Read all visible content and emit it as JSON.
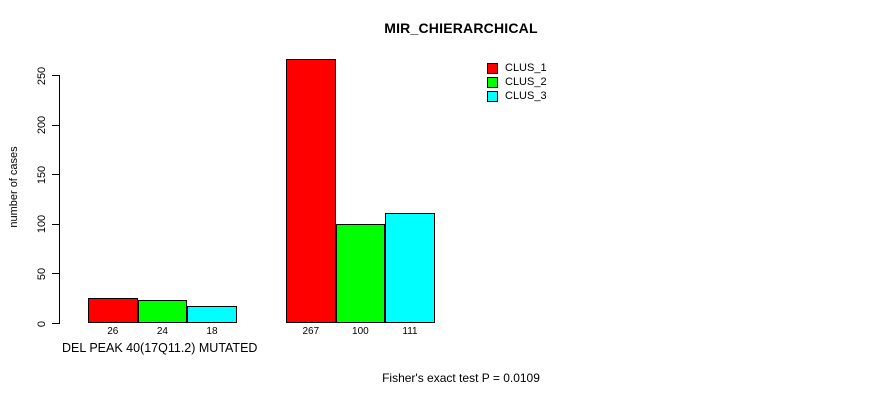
{
  "chart_data": {
    "type": "bar",
    "title": "MIR_CHIERARCHICAL",
    "xlabel": "DEL PEAK 40(17Q11.2) MUTATED",
    "ylabel": "number of cases",
    "ylim": [
      0,
      250
    ],
    "yticks": [
      0,
      50,
      100,
      150,
      200,
      250
    ],
    "grid": false,
    "legend_position": "top-right",
    "bar_value_labels_shown": true,
    "group_count": 2,
    "series": [
      {
        "name": "CLUS_1",
        "color": "#ff0000",
        "values": [
          26,
          267
        ]
      },
      {
        "name": "CLUS_2",
        "color": "#00ff00",
        "values": [
          24,
          100
        ]
      },
      {
        "name": "CLUS_3",
        "color": "#00ffff",
        "values": [
          18,
          111
        ]
      }
    ],
    "annotation": "Fisher's exact test P = 0.0109"
  },
  "colors": {
    "axis": "#000000",
    "background": "#ffffff",
    "text": "#000000"
  }
}
